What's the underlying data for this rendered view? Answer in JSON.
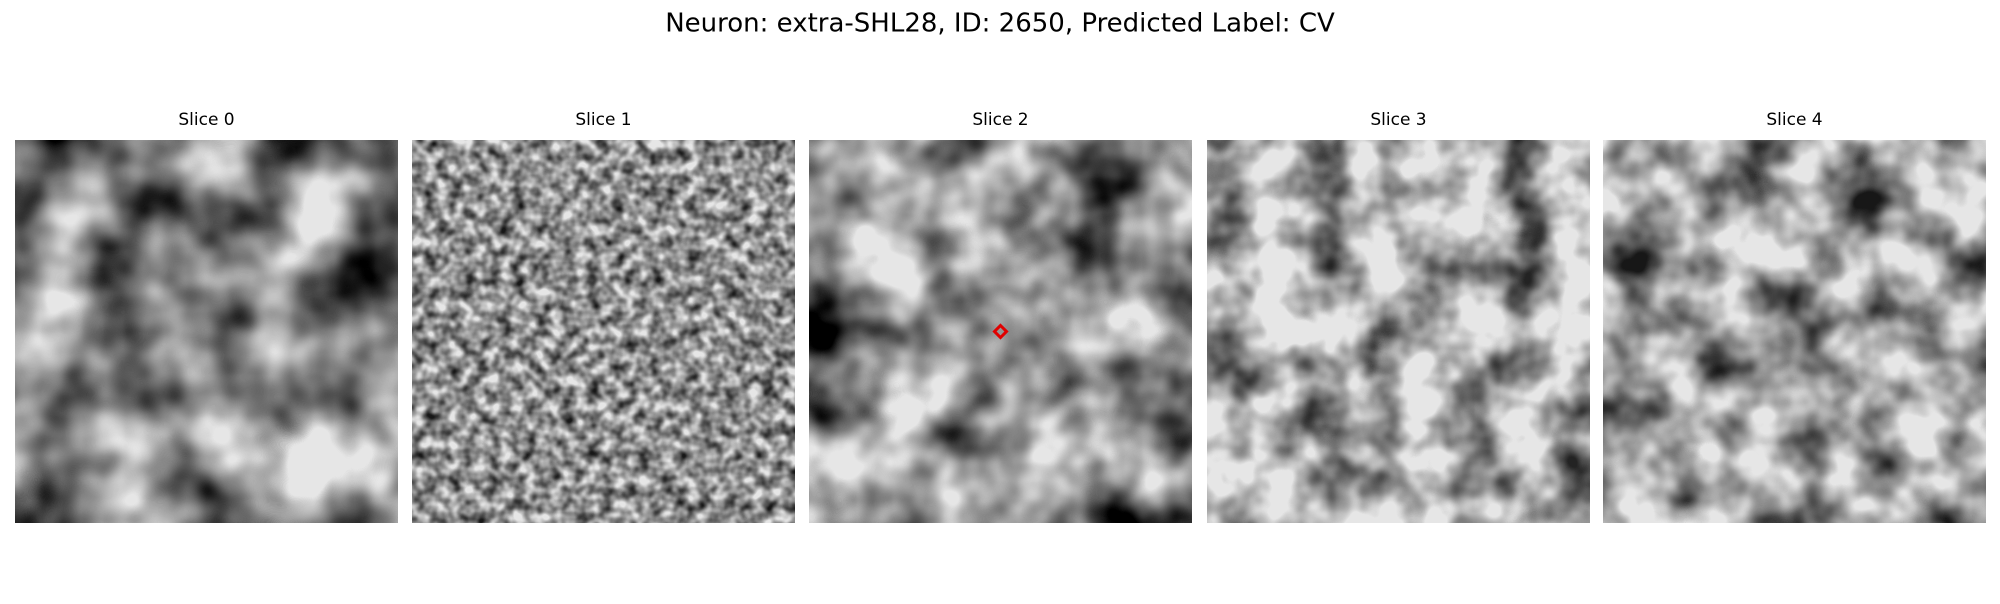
{
  "title": "Neuron: extra-SHL28, ID: 2650, Predicted Label: CV",
  "panels": [
    {
      "label": "Slice 0"
    },
    {
      "label": "Slice 1"
    },
    {
      "label": "Slice 2"
    },
    {
      "label": "Slice 3"
    },
    {
      "label": "Slice 4"
    }
  ]
}
